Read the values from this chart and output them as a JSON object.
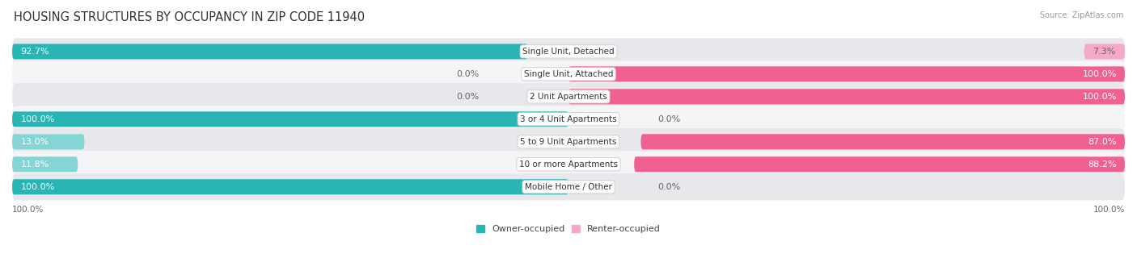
{
  "title": "HOUSING STRUCTURES BY OCCUPANCY IN ZIP CODE 11940",
  "source": "Source: ZipAtlas.com",
  "categories": [
    "Single Unit, Detached",
    "Single Unit, Attached",
    "2 Unit Apartments",
    "3 or 4 Unit Apartments",
    "5 to 9 Unit Apartments",
    "10 or more Apartments",
    "Mobile Home / Other"
  ],
  "owner_pct": [
    92.7,
    0.0,
    0.0,
    100.0,
    13.0,
    11.8,
    100.0
  ],
  "renter_pct": [
    7.3,
    100.0,
    100.0,
    0.0,
    87.0,
    88.2,
    0.0
  ],
  "owner_color_dark": "#2ab5b5",
  "owner_color_light": "#85d5d5",
  "renter_color_dark": "#f06090",
  "renter_color_light": "#f5a8c8",
  "row_bg_color_dark": "#e8e8ec",
  "row_bg_color_light": "#f5f5f7",
  "bar_height": 0.68,
  "figsize": [
    14.06,
    3.41
  ],
  "dpi": 100,
  "title_fontsize": 10.5,
  "pct_label_fontsize": 8,
  "category_fontsize": 7.5,
  "legend_fontsize": 8,
  "footer_fontsize": 7.5,
  "owner_label": "Owner-occupied",
  "renter_label": "Renter-occupied"
}
